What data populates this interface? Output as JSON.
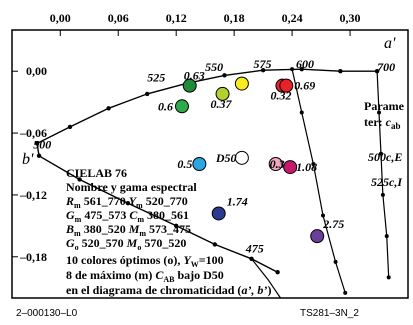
{
  "chart_data": {
    "type": "scatter",
    "xlabel": "a'",
    "ylabel": "b'",
    "xlim": [
      -0.05,
      0.36
    ],
    "ylim": [
      -0.22,
      0.04
    ],
    "x_ticks": [
      "0,00",
      "0,06",
      "0,12",
      "0,18",
      "0,24",
      "0,30"
    ],
    "y_ticks": [
      "0,00",
      "–0,06",
      "–0,12",
      "–0,18"
    ],
    "locus_labels": [
      {
        "text": "525",
        "x": 0.09,
        "y": -0.01
      },
      {
        "text": "550",
        "x": 0.15,
        "y": 0.0
      },
      {
        "text": "575",
        "x": 0.2,
        "y": 0.003
      },
      {
        "text": "600",
        "x": 0.244,
        "y": 0.003
      },
      {
        "text": "700",
        "x": 0.328,
        "y": 0.0
      },
      {
        "text": "500",
        "x": -0.028,
        "y": -0.075
      },
      {
        "text": "475",
        "x": 0.192,
        "y": -0.176
      }
    ],
    "colors": [
      {
        "label": "0.63",
        "x": 0.134,
        "y": -0.014,
        "color": "#1f8a3c"
      },
      {
        "label": "0.6",
        "x": 0.126,
        "y": -0.034,
        "color": "#2fa84a"
      },
      {
        "label": "0.37",
        "x": 0.168,
        "y": -0.022,
        "color": "#b2d12c"
      },
      {
        "label": "",
        "x": 0.188,
        "y": -0.012,
        "color": "#f6ec1f"
      },
      {
        "label": "0.32",
        "x": 0.23,
        "y": -0.014,
        "color": "#e8222a"
      },
      {
        "label": "0.69",
        "x": 0.234,
        "y": -0.014,
        "color": "#e8222a"
      },
      {
        "label": "0.5",
        "x": 0.144,
        "y": -0.09,
        "color": "#2aa7e2"
      },
      {
        "label": "D50",
        "x": 0.188,
        "y": -0.084,
        "color": "#ffffff"
      },
      {
        "label": "0.3",
        "x": 0.223,
        "y": -0.09,
        "color": "#f4a7c0"
      },
      {
        "label": "1.08",
        "x": 0.238,
        "y": -0.093,
        "color": "#c8186e"
      },
      {
        "label": "1.74",
        "x": 0.164,
        "y": -0.138,
        "color": "#2b3a8e"
      },
      {
        "label": "2.75",
        "x": 0.266,
        "y": -0.16,
        "color": "#6a3f9a"
      }
    ],
    "series_labels": [
      "500c,E",
      "525c,I"
    ],
    "legend_text": [
      "Parame",
      "ter: c_ab"
    ]
  },
  "info_lines": [
    "CIELAB 76",
    "Nombre y gama espectral",
    "Rm 561_770  Ym 520_770",
    "Gm 475_573  Cm 380_561",
    "Bm 380_520  Mm 573_475",
    "Go 520_570  Mo 570_520",
    "10 colores óptimos (o), YW=100",
    "8 de máximo (m) CAB bajo D50",
    "en el diagrama de chromaticidad (a', b')"
  ],
  "footer": {
    "left": "2–000130–L0",
    "right": "TS281–3N_2"
  }
}
